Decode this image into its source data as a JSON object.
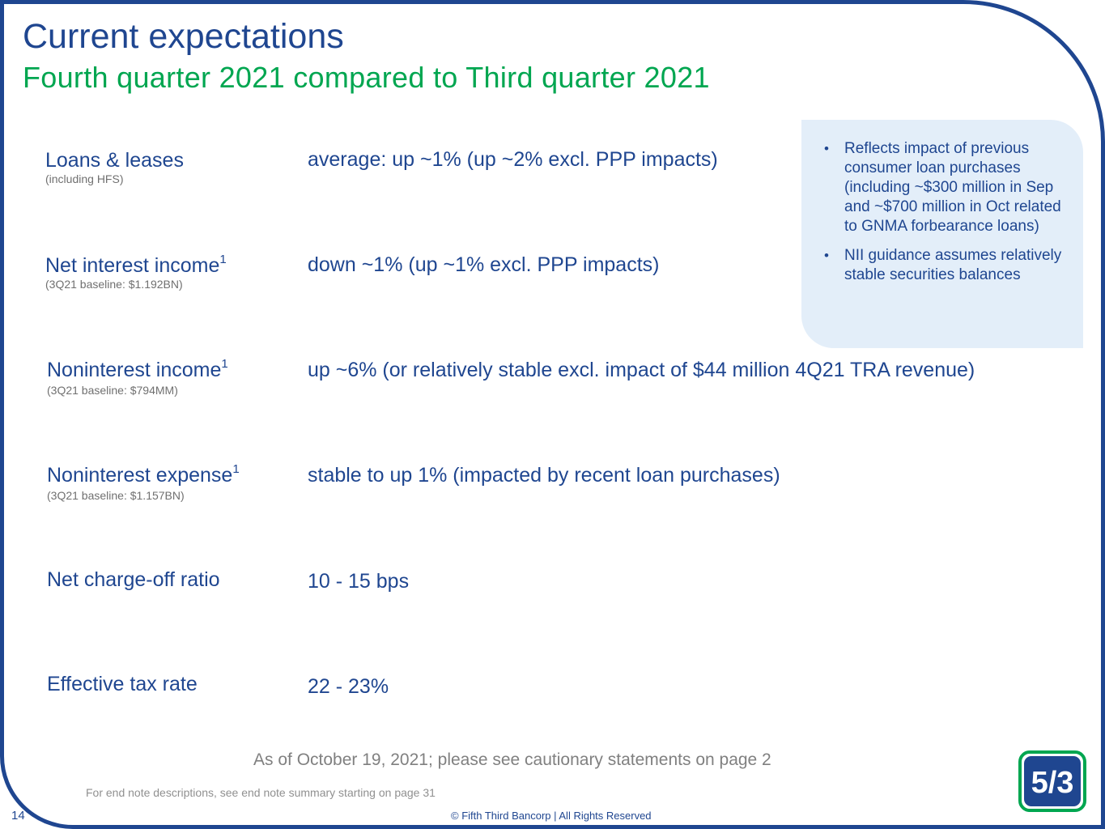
{
  "header": {
    "title": "Current expectations",
    "subtitle": "Fourth quarter 2021 compared to Third quarter 2021"
  },
  "rows": [
    {
      "label": "Loans & leases",
      "sup": "",
      "sub": "(including HFS)",
      "value": "average: up ~1% (up ~2% excl. PPP impacts)"
    },
    {
      "label": "Net interest income",
      "sup": "1",
      "sub": "(3Q21 baseline: $1.192BN)",
      "value": "down ~1% (up ~1% excl. PPP impacts)"
    },
    {
      "label": "Noninterest income",
      "sup": "1",
      "sub": "(3Q21 baseline: $794MM)",
      "value": "up ~6% (or relatively stable excl. impact of $44 million 4Q21 TRA revenue)"
    },
    {
      "label": "Noninterest expense",
      "sup": "1",
      "sub": "(3Q21 baseline: $1.157BN)",
      "value": "stable to up 1% (impacted by recent loan purchases)"
    },
    {
      "label": "Net charge-off ratio",
      "sup": "",
      "sub": "",
      "value": "10 - 15 bps"
    },
    {
      "label": "Effective tax rate",
      "sup": "",
      "sub": "",
      "value": "22 - 23%"
    }
  ],
  "notes": {
    "bullet_glyph": "•",
    "items": [
      "Reflects impact of previous consumer loan purchases (including ~$300 million in Sep and ~$700 million in Oct related to GNMA forbearance loans)",
      "NII guidance assumes relatively stable securities balances"
    ]
  },
  "footer": {
    "as_of": "As of October 19, 2021; please see cautionary statements on page 2",
    "endnote": "For end note descriptions, see end note summary starting on page 31",
    "page_number": "14",
    "copyright": "© Fifth Third Bancorp | All Rights Reserved",
    "logo_text": "5/3"
  },
  "colors": {
    "primary_blue": "#1f4690",
    "accent_green": "#00a650",
    "note_background": "#e3eef9",
    "muted_gray": "#808080"
  }
}
